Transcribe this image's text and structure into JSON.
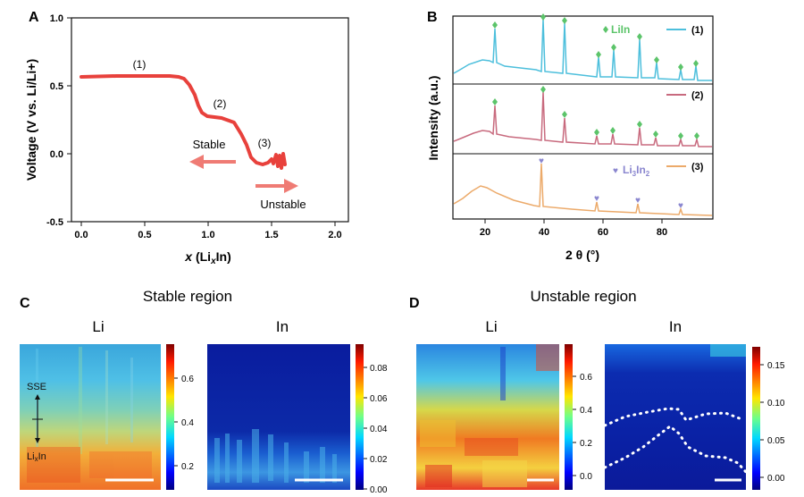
{
  "panelA": {
    "label": "A",
    "ylabel": "Voltage (V vs. Li/Li+)",
    "xlabel_pre": "x",
    "xlabel_mid": "(Li",
    "xlabel_sub": "x",
    "xlabel_post": "In)",
    "xticks": [
      "0.0",
      "0.5",
      "1.0",
      "1.5",
      "2.0"
    ],
    "yticks": [
      "-0.5",
      "0.0",
      "0.5",
      "1.0"
    ],
    "annotations": [
      "(1)",
      "(2)",
      "(3)"
    ],
    "stable_label": "Stable",
    "unstable_label": "Unstable",
    "curve_color": "#e8413c",
    "arrow_color": "#ef7b74"
  },
  "panelB": {
    "label": "B",
    "ylabel": "Intensity (a.u.)",
    "xlabel": "2 θ (°)",
    "xticks": [
      "20",
      "40",
      "60",
      "80"
    ],
    "series": [
      {
        "name": "(1)",
        "color": "#4dbfdc"
      },
      {
        "name": "(2)",
        "color": "#c86a7e"
      },
      {
        "name": "(3)",
        "color": "#ecaa6a"
      }
    ],
    "legend_liin": "LiIn",
    "legend_li3in2_main": "Li",
    "legend_li3in2_sub1": "3",
    "legend_li3in2_mid": "In",
    "legend_li3in2_sub2": "2",
    "liin_color": "#5cc46a",
    "li3in2_color": "#8a86cf"
  },
  "panelC": {
    "label": "C",
    "title": "Stable region",
    "map1_title": "Li",
    "map2_title": "In",
    "sse_label": "SSE",
    "liin_label_pre": "Li",
    "liin_label_sub": "x",
    "liin_label_post": "In",
    "cbar1_ticks": [
      "0.6",
      "0.4",
      "0.2"
    ],
    "cbar2_ticks": [
      "0.08",
      "0.06",
      "0.04",
      "0.02",
      "0.00"
    ]
  },
  "panelD": {
    "label": "D",
    "title": "Unstable region",
    "map1_title": "Li",
    "map2_title": "In",
    "cbar1_ticks": [
      "0.6",
      "0.4",
      "0.2",
      "0.0"
    ],
    "cbar2_ticks": [
      "0.15",
      "0.10",
      "0.05",
      "0.00"
    ]
  }
}
